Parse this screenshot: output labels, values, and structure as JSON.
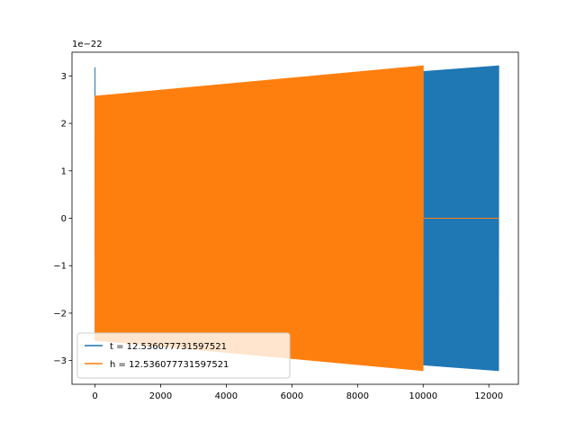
{
  "chart_data": {
    "type": "line",
    "title": "",
    "xlabel": "",
    "ylabel": "",
    "y_offset_text": "1e−22",
    "y_scale": 1e-22,
    "xlim": [
      -700,
      12900
    ],
    "ylim": [
      -3.5,
      3.5
    ],
    "xticks": [
      0,
      2000,
      4000,
      6000,
      8000,
      10000,
      12000
    ],
    "xtick_labels": [
      "0",
      "2000",
      "4000",
      "6000",
      "8000",
      "10000",
      "12000"
    ],
    "yticks": [
      -3,
      -2,
      -1,
      0,
      1,
      2,
      3
    ],
    "ytick_labels": [
      "−3",
      "−2",
      "−1",
      "0",
      "1",
      "2",
      "3"
    ],
    "grid": false,
    "legend_position": "lower-left",
    "series": [
      {
        "name": "t = 12.536077731597521",
        "color": "#1f77b4",
        "x_start": 0,
        "x_end": 12300,
        "amplitude_start": 2.58,
        "amplitude_end": 3.22,
        "initial_spike": 3.18,
        "after_end_value": null
      },
      {
        "name": "h = 12.536077731597521",
        "color": "#ff7f0e",
        "x_start": 0,
        "x_end": 10000,
        "amplitude_start": 2.58,
        "amplitude_end": 3.22,
        "initial_spike": null,
        "after_end_value": 0
      }
    ]
  }
}
